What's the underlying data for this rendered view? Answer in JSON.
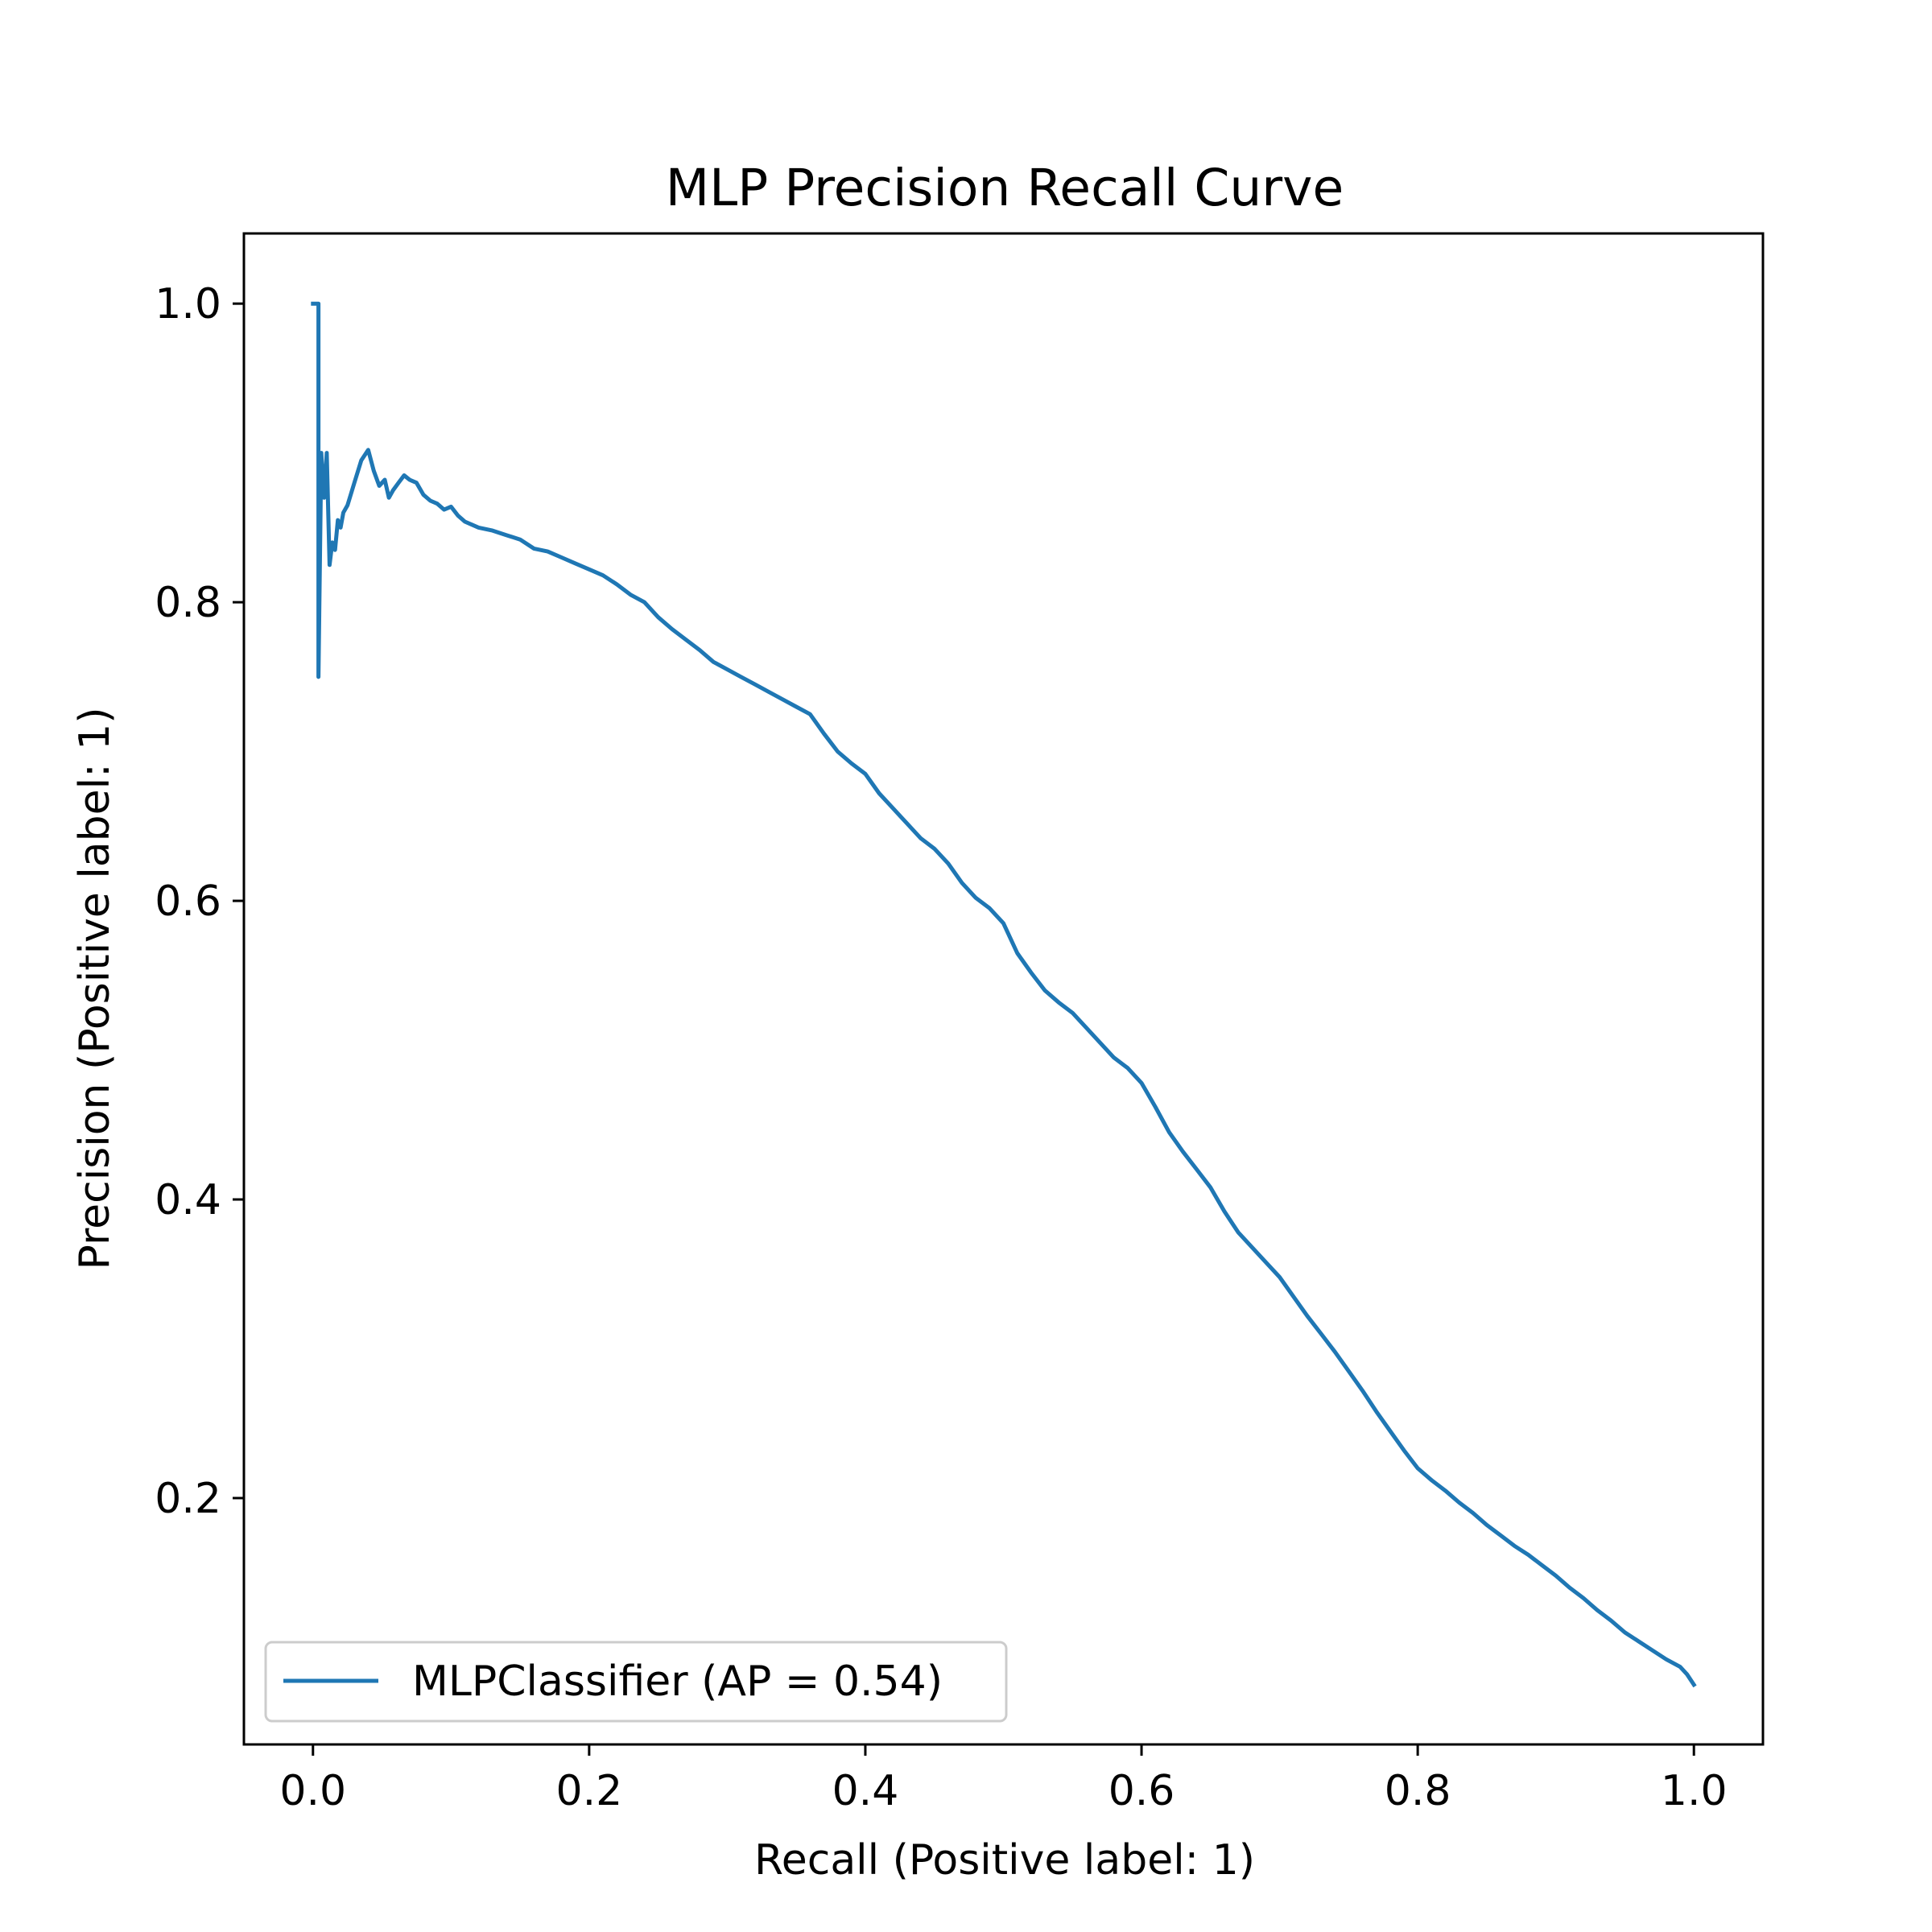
{
  "chart_data": {
    "type": "line",
    "title": "MLP Precision Recall Curve",
    "xlabel": "Recall (Positive label: 1)",
    "ylabel": "Precision (Positive label: 1)",
    "xlim": [
      -0.05,
      1.05
    ],
    "ylim": [
      0.035,
      1.047
    ],
    "xticks": [
      0.0,
      0.2,
      0.4,
      0.6,
      0.8,
      1.0
    ],
    "xtick_labels": [
      "0.0",
      "0.2",
      "0.4",
      "0.6",
      "0.8",
      "1.0"
    ],
    "yticks": [
      0.2,
      0.4,
      0.6,
      0.8,
      1.0
    ],
    "ytick_labels": [
      "0.2",
      "0.4",
      "0.6",
      "0.8",
      "1.0"
    ],
    "grid": false,
    "legend_position": "lower-left",
    "series": [
      {
        "name": "MLPClassifier (AP = 0.54)",
        "color": "#1f77b4",
        "x": [
          0.0,
          0.002,
          0.004,
          0.004,
          0.006,
          0.008,
          0.01,
          0.012,
          0.014,
          0.016,
          0.018,
          0.02,
          0.022,
          0.025,
          0.03,
          0.035,
          0.04,
          0.044,
          0.048,
          0.052,
          0.055,
          0.058,
          0.062,
          0.066,
          0.07,
          0.075,
          0.08,
          0.085,
          0.09,
          0.095,
          0.1,
          0.105,
          0.11,
          0.115,
          0.12,
          0.13,
          0.14,
          0.15,
          0.16,
          0.17,
          0.18,
          0.19,
          0.2,
          0.21,
          0.22,
          0.23,
          0.24,
          0.25,
          0.26,
          0.27,
          0.28,
          0.29,
          0.3,
          0.31,
          0.32,
          0.33,
          0.34,
          0.35,
          0.36,
          0.37,
          0.38,
          0.39,
          0.4,
          0.41,
          0.42,
          0.43,
          0.44,
          0.45,
          0.46,
          0.47,
          0.48,
          0.49,
          0.5,
          0.51,
          0.52,
          0.53,
          0.54,
          0.55,
          0.56,
          0.57,
          0.58,
          0.59,
          0.6,
          0.61,
          0.62,
          0.63,
          0.64,
          0.65,
          0.66,
          0.67,
          0.68,
          0.69,
          0.7,
          0.71,
          0.72,
          0.73,
          0.74,
          0.75,
          0.76,
          0.77,
          0.78,
          0.79,
          0.8,
          0.81,
          0.82,
          0.83,
          0.84,
          0.85,
          0.86,
          0.87,
          0.88,
          0.89,
          0.9,
          0.91,
          0.92,
          0.93,
          0.94,
          0.95,
          0.96,
          0.97,
          0.98,
          0.99,
          0.995,
          1.0
        ],
        "y": [
          1.0,
          1.0,
          1.0,
          0.75,
          0.9,
          0.87,
          0.9,
          0.825,
          0.84,
          0.835,
          0.855,
          0.85,
          0.86,
          0.865,
          0.88,
          0.895,
          0.902,
          0.888,
          0.878,
          0.882,
          0.87,
          0.875,
          0.88,
          0.885,
          0.882,
          0.88,
          0.872,
          0.868,
          0.866,
          0.862,
          0.864,
          0.858,
          0.854,
          0.852,
          0.85,
          0.848,
          0.845,
          0.842,
          0.836,
          0.834,
          0.83,
          0.826,
          0.822,
          0.818,
          0.812,
          0.805,
          0.8,
          0.79,
          0.782,
          0.775,
          0.768,
          0.76,
          0.755,
          0.75,
          0.745,
          0.74,
          0.735,
          0.73,
          0.725,
          0.712,
          0.7,
          0.692,
          0.685,
          0.672,
          0.662,
          0.652,
          0.642,
          0.635,
          0.625,
          0.612,
          0.602,
          0.595,
          0.585,
          0.565,
          0.552,
          0.54,
          0.532,
          0.525,
          0.515,
          0.505,
          0.495,
          0.488,
          0.478,
          0.462,
          0.445,
          0.432,
          0.42,
          0.408,
          0.392,
          0.378,
          0.368,
          0.358,
          0.348,
          0.335,
          0.322,
          0.31,
          0.298,
          0.285,
          0.272,
          0.258,
          0.245,
          0.232,
          0.22,
          0.212,
          0.205,
          0.197,
          0.19,
          0.182,
          0.175,
          0.168,
          0.162,
          0.155,
          0.148,
          0.14,
          0.133,
          0.125,
          0.118,
          0.11,
          0.104,
          0.098,
          0.092,
          0.087,
          0.082,
          0.075
        ]
      }
    ]
  }
}
